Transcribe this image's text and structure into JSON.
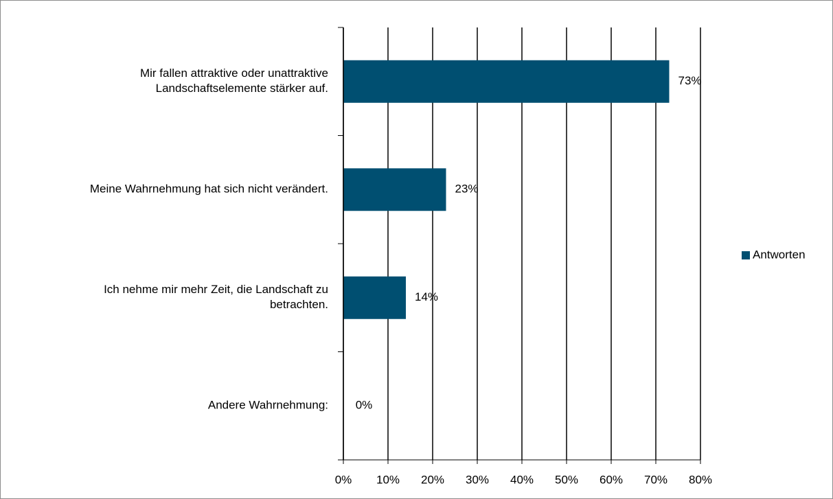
{
  "chart_data": {
    "type": "bar",
    "orientation": "horizontal",
    "categories": [
      "Mir fallen attraktive oder unattraktive Landschaftselemente stärker auf.",
      "Meine Wahrnehmung hat sich nicht verändert.",
      "Ich nehme mir mehr Zeit, die Landschaft zu betrachten.",
      "Andere Wahrnehmung:"
    ],
    "series": [
      {
        "name": "Antworten",
        "color": "#004f71",
        "values": [
          73,
          23,
          14,
          0
        ],
        "value_labels": [
          "73%",
          "23%",
          "14%",
          "0%"
        ]
      }
    ],
    "xlim": [
      0,
      80
    ],
    "xticks": [
      {
        "value": 0,
        "label": "0%"
      },
      {
        "value": 10,
        "label": "10%"
      },
      {
        "value": 20,
        "label": "20%"
      },
      {
        "value": 30,
        "label": "30%"
      },
      {
        "value": 40,
        "label": "40%"
      },
      {
        "value": 50,
        "label": "50%"
      },
      {
        "value": 60,
        "label": "60%"
      },
      {
        "value": 70,
        "label": "70%"
      },
      {
        "value": 80,
        "label": "80%"
      }
    ],
    "grid": true,
    "legend": "right"
  }
}
